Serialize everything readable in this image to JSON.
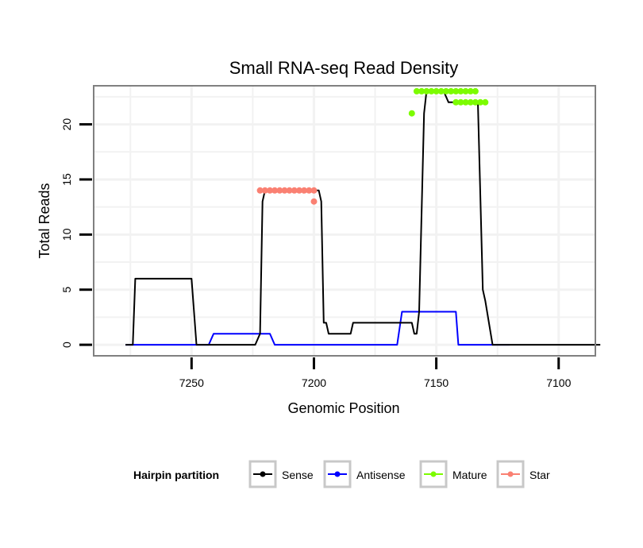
{
  "chart_data": {
    "type": "line",
    "title": "Small RNA-seq Read Density",
    "xlabel": "Genomic Position",
    "ylabel": "Total Reads",
    "xlim": [
      7290,
      7085
    ],
    "ylim": [
      -1,
      23.5
    ],
    "x_reversed": true,
    "grid": true,
    "x_ticks": [
      7250,
      7200,
      7150,
      7100
    ],
    "y_ticks": [
      0,
      5,
      10,
      15,
      20
    ],
    "legend": {
      "title": "Hairpin partition",
      "placement": "bottom",
      "entries": [
        {
          "name": "Sense",
          "color": "#000000"
        },
        {
          "name": "Antisense",
          "color": "#0000ff"
        },
        {
          "name": "Mature",
          "color": "#7cfc00"
        },
        {
          "name": "Star",
          "color": "#fa8072"
        }
      ]
    },
    "series": [
      {
        "name": "Sense",
        "color": "#000000",
        "x": [
          7277,
          7274,
          7273,
          7250,
          7248,
          7224,
          7222,
          7221,
          7220,
          7198,
          7197,
          7196,
          7195,
          7194,
          7191,
          7185,
          7184,
          7183,
          7175,
          7160,
          7159,
          7158,
          7157,
          7155,
          7154,
          7153,
          7152,
          7150,
          7148,
          7147,
          7145,
          7140,
          7139,
          7138,
          7137,
          7136,
          7133,
          7131,
          7130,
          7127,
          7110,
          7100,
          7083
        ],
        "y": [
          0,
          0,
          6,
          6,
          0,
          0,
          1,
          13,
          14,
          14,
          13,
          2,
          2,
          1,
          1,
          1,
          2,
          2,
          2,
          2,
          1,
          1,
          3,
          21,
          23,
          23,
          23,
          23,
          23,
          23,
          22,
          22,
          22,
          22,
          22,
          22,
          22,
          5,
          4,
          0,
          0,
          0,
          0
        ]
      },
      {
        "name": "Antisense",
        "color": "#0000ff",
        "x": [
          7277,
          7243,
          7241,
          7218,
          7216,
          7183,
          7166,
          7164,
          7159,
          7142,
          7141,
          7140,
          7120
        ],
        "y": [
          0,
          0,
          1,
          1,
          0,
          0,
          0,
          3,
          3,
          3,
          0,
          0,
          0
        ]
      },
      {
        "name": "Mature",
        "color": "#7cfc00",
        "points": [
          [
            7160,
            21
          ],
          [
            7158,
            23
          ],
          [
            7156,
            23
          ],
          [
            7154,
            23
          ],
          [
            7152,
            23
          ],
          [
            7150,
            23
          ],
          [
            7148,
            23
          ],
          [
            7146,
            23
          ],
          [
            7144,
            23
          ],
          [
            7142,
            23
          ],
          [
            7140,
            23
          ],
          [
            7138,
            23
          ],
          [
            7136,
            23
          ],
          [
            7134,
            23
          ],
          [
            7142,
            22
          ],
          [
            7140,
            22
          ],
          [
            7138,
            22
          ],
          [
            7136,
            22
          ],
          [
            7134,
            22
          ],
          [
            7132,
            22
          ],
          [
            7130,
            22
          ]
        ]
      },
      {
        "name": "Star",
        "color": "#fa8072",
        "points": [
          [
            7222,
            14
          ],
          [
            7220,
            14
          ],
          [
            7218,
            14
          ],
          [
            7216,
            14
          ],
          [
            7214,
            14
          ],
          [
            7212,
            14
          ],
          [
            7210,
            14
          ],
          [
            7208,
            14
          ],
          [
            7206,
            14
          ],
          [
            7204,
            14
          ],
          [
            7202,
            14
          ],
          [
            7200,
            14
          ],
          [
            7200,
            13
          ]
        ]
      }
    ]
  }
}
